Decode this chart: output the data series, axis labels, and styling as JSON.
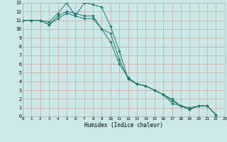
{
  "xlabel": "Humidex (Indice chaleur)",
  "bg_color": "#cce8e8",
  "grid_color": "#d4a0a0",
  "line_color": "#1a7a6e",
  "xlim": [
    0,
    23
  ],
  "ylim": [
    0,
    13
  ],
  "series": [
    {
      "x": [
        0,
        1,
        2,
        3,
        4,
        5,
        6,
        7,
        8,
        9,
        10,
        11,
        12,
        13,
        14,
        15,
        16,
        17,
        18,
        19,
        20,
        21,
        22
      ],
      "y": [
        11,
        11,
        11,
        10.8,
        11.8,
        13,
        11.5,
        13,
        12.8,
        12.5,
        10.3,
        7.5,
        4.3,
        3.7,
        3.5,
        3.0,
        2.5,
        2.0,
        1.2,
        0.8,
        1.2,
        1.2,
        0.2
      ]
    },
    {
      "x": [
        0,
        1,
        2,
        3,
        4,
        5,
        6,
        7,
        8,
        9,
        10,
        11,
        12,
        13,
        14,
        15,
        16,
        17,
        18,
        19,
        20,
        21,
        22
      ],
      "y": [
        11,
        11,
        11,
        10.5,
        11.5,
        12,
        11.8,
        11.5,
        11.5,
        10,
        8.5,
        6.0,
        4.5,
        3.7,
        3.5,
        3.0,
        2.5,
        1.8,
        1.2,
        1.0,
        1.2,
        1.2,
        0.2
      ]
    },
    {
      "x": [
        0,
        1,
        2,
        3,
        4,
        5,
        6,
        7,
        8,
        9,
        10,
        11,
        12,
        13,
        14,
        15,
        16,
        17,
        18,
        19,
        20,
        21,
        22
      ],
      "y": [
        11,
        11,
        11,
        10.5,
        11.2,
        11.8,
        11.5,
        11.2,
        11.2,
        10,
        9.5,
        6.5,
        4.3,
        3.7,
        3.5,
        3.0,
        2.5,
        1.5,
        1.2,
        0.8,
        1.2,
        1.2,
        0.2
      ]
    }
  ],
  "xticks": [
    0,
    1,
    2,
    3,
    4,
    5,
    6,
    7,
    8,
    9,
    10,
    11,
    12,
    13,
    14,
    15,
    16,
    17,
    18,
    19,
    20,
    21,
    22,
    23
  ],
  "yticks": [
    0,
    1,
    2,
    3,
    4,
    5,
    6,
    7,
    8,
    9,
    10,
    11,
    12,
    13
  ]
}
